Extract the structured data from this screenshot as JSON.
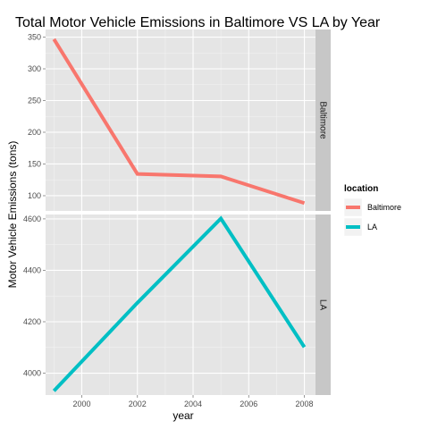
{
  "chart_data": {
    "type": "line",
    "title": "Total Motor Vehicle Emissions in Baltimore VS LA by Year",
    "xlabel": "year",
    "ylabel": "Motor Vehicle Emissions (tons)",
    "x": [
      1999,
      2002,
      2005,
      2008
    ],
    "xlim": [
      1998.7,
      2008.4
    ],
    "xticks": [
      "2000",
      "2002",
      "2004",
      "2006",
      "2008"
    ],
    "legend": {
      "title": "location",
      "position": "right"
    },
    "colors": {
      "Baltimore": "#F8766D",
      "LA": "#00BFC4"
    },
    "panels": [
      {
        "strip": "Baltimore",
        "series": "Baltimore",
        "values": [
          346.8,
          134.3,
          130.4,
          88.3
        ],
        "ylim": [
          76,
          362
        ],
        "yticks": [
          "100",
          "150",
          "200",
          "250",
          "300",
          "350"
        ]
      },
      {
        "strip": "LA",
        "series": "LA",
        "values": [
          3931.1,
          4273.7,
          4601.4,
          4101.3
        ],
        "ylim": [
          3915,
          4617
        ],
        "yticks": [
          "4000",
          "4200",
          "4400",
          "4600"
        ]
      }
    ]
  }
}
